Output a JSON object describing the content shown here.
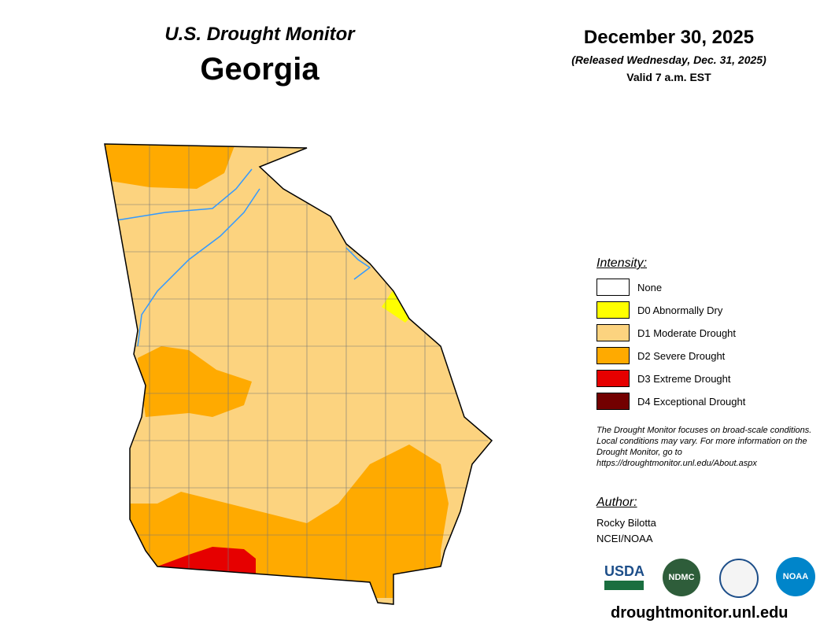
{
  "header": {
    "subtitle": "U.S. Drought Monitor",
    "title": "Georgia"
  },
  "date": {
    "date": "December 30, 2025",
    "released": "(Released Wednesday, Dec. 31, 2025)",
    "valid": "Valid 7 a.m. EST"
  },
  "legend": {
    "title": "Intensity:",
    "items": [
      {
        "label": "None",
        "color": "#ffffff"
      },
      {
        "label": "D0 Abnormally Dry",
        "color": "#ffff00"
      },
      {
        "label": "D1 Moderate Drought",
        "color": "#fcd37f"
      },
      {
        "label": "D2 Severe Drought",
        "color": "#ffaa00"
      },
      {
        "label": "D3 Extreme Drought",
        "color": "#e60000"
      },
      {
        "label": "D4 Exceptional Drought",
        "color": "#730000"
      }
    ]
  },
  "note": "The Drought Monitor focuses on broad-scale conditions. Local conditions may vary. For more information on the Drought Monitor, go to https://droughtmonitor.unl.edu/About.aspx",
  "author": {
    "title": "Author:",
    "name": "Rocky Bilotta",
    "org": "NCEI/NOAA"
  },
  "logos": [
    "USDA",
    "NDMC",
    "NOAA"
  ],
  "url": "droughtmonitor.unl.edu"
}
